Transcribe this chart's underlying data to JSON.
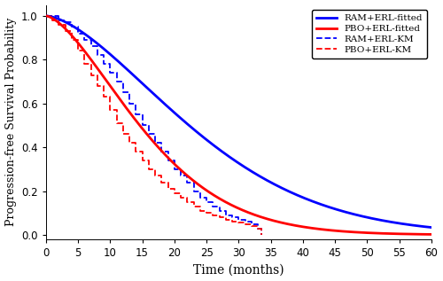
{
  "title": "",
  "xlabel": "Time (months)",
  "ylabel": "Progression-free Survival Probability",
  "xlim": [
    0,
    60
  ],
  "ylim": [
    -0.02,
    1.05
  ],
  "xticks": [
    0,
    5,
    10,
    15,
    20,
    25,
    30,
    35,
    40,
    45,
    50,
    55,
    60
  ],
  "yticks": [
    0.0,
    0.2,
    0.4,
    0.6,
    0.8,
    1.0
  ],
  "weibull_RAM": {
    "shape": 1.6,
    "scale": 28.0,
    "color": "#0000FF"
  },
  "weibull_PBO": {
    "shape": 1.55,
    "scale": 18.5,
    "color": "#FF0000"
  },
  "km_RAM": {
    "times": [
      0,
      2,
      3,
      4,
      5,
      6,
      7,
      8,
      9,
      10,
      11,
      12,
      13,
      14,
      15,
      16,
      17,
      18,
      19,
      20,
      21,
      22,
      23,
      24,
      25,
      26,
      27,
      28,
      29,
      30,
      31,
      32,
      33,
      33.5
    ],
    "surv": [
      1.0,
      0.98,
      0.97,
      0.95,
      0.92,
      0.89,
      0.86,
      0.82,
      0.78,
      0.74,
      0.7,
      0.65,
      0.6,
      0.55,
      0.5,
      0.46,
      0.42,
      0.38,
      0.34,
      0.3,
      0.27,
      0.24,
      0.2,
      0.17,
      0.15,
      0.13,
      0.11,
      0.09,
      0.08,
      0.07,
      0.06,
      0.05,
      0.03,
      0.0
    ],
    "color": "#0000FF"
  },
  "km_PBO": {
    "times": [
      0,
      1,
      2,
      3,
      4,
      5,
      6,
      7,
      8,
      9,
      10,
      11,
      12,
      13,
      14,
      15,
      16,
      17,
      18,
      19,
      20,
      21,
      22,
      23,
      24,
      25,
      26,
      27,
      28,
      29,
      30,
      31,
      32,
      33,
      33.5
    ],
    "surv": [
      1.0,
      0.98,
      0.96,
      0.93,
      0.89,
      0.84,
      0.78,
      0.73,
      0.68,
      0.63,
      0.57,
      0.51,
      0.46,
      0.42,
      0.38,
      0.34,
      0.3,
      0.27,
      0.24,
      0.21,
      0.19,
      0.17,
      0.15,
      0.13,
      0.11,
      0.1,
      0.09,
      0.08,
      0.07,
      0.06,
      0.055,
      0.05,
      0.04,
      0.03,
      0.0
    ],
    "color": "#FF0000"
  },
  "legend_labels": [
    "RAM+ERL-fitted",
    "PBO+ERL-fitted",
    "RAM+ERL-KM",
    "PBO+ERL-KM"
  ],
  "background_color": "#FFFFFF",
  "figsize": [
    5.0,
    3.17
  ],
  "dpi": 100
}
